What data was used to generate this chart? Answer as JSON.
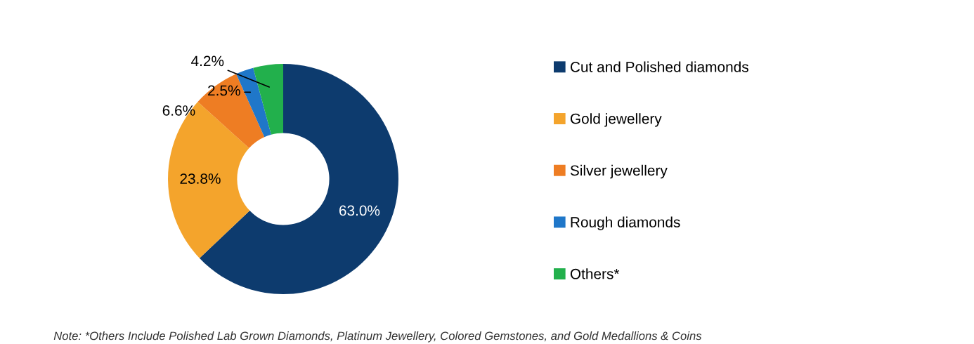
{
  "chart_data": {
    "type": "donut",
    "categories": [
      "Cut and Polished diamonds",
      "Gold jewellery",
      "Silver jewellery",
      "Rough diamonds",
      "Others*"
    ],
    "values": [
      63.0,
      23.8,
      6.6,
      2.5,
      4.2
    ],
    "colors": [
      "#0d3b6e",
      "#f4a42c",
      "#ee7d23",
      "#1f77c9",
      "#22b04c"
    ],
    "value_labels": [
      "63.0%",
      "23.8%",
      "6.6%",
      "2.5%",
      "4.2%"
    ],
    "legend": "right",
    "annotations": [
      "Note: *Others Include Polished Lab Grown Diamonds, Platinum Jewellery, Colored Gemstones, and Gold Medallions & Coins"
    ]
  }
}
